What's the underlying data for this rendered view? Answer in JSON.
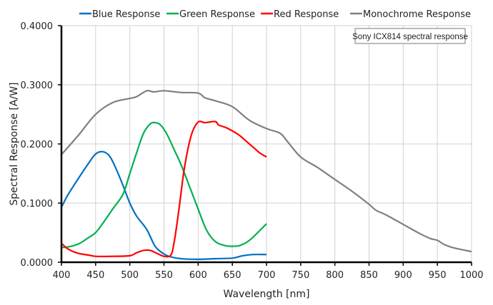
{
  "chart_data": {
    "type": "line",
    "title": "Sony ICX814 spectral response",
    "xlabel": "Wavelength [nm]",
    "ylabel": "Spectral Response [A/W]",
    "xlim": [
      400,
      1000
    ],
    "ylim": [
      0,
      0.4
    ],
    "xticks": [
      "400",
      "450",
      "500",
      "550",
      "600",
      "650",
      "700",
      "750",
      "800",
      "850",
      "900",
      "950",
      "1000"
    ],
    "yticks": [
      "0.0000",
      "0.1000",
      "0.2000",
      "0.3000",
      "0.4000"
    ],
    "grid": true,
    "legend_position": "top",
    "series": [
      {
        "name": "Blue Response",
        "color": "#0070c0",
        "x": [
          400,
          410,
          425,
          440,
          450,
          460,
          470,
          480,
          490,
          500,
          510,
          525,
          537,
          550,
          560,
          575,
          600,
          625,
          650,
          665,
          680,
          700
        ],
        "y": [
          0.093,
          0.115,
          0.142,
          0.168,
          0.183,
          0.187,
          0.18,
          0.158,
          0.13,
          0.1,
          0.078,
          0.055,
          0.027,
          0.014,
          0.009,
          0.006,
          0.005,
          0.006,
          0.007,
          0.011,
          0.013,
          0.013
        ]
      },
      {
        "name": "Green Response",
        "color": "#00b050",
        "x": [
          400,
          410,
          425,
          440,
          450,
          460,
          475,
          490,
          500,
          510,
          520,
          530,
          537,
          545,
          555,
          565,
          575,
          590,
          600,
          612,
          625,
          640,
          650,
          660,
          670,
          680,
          700
        ],
        "y": [
          0.025,
          0.026,
          0.031,
          0.042,
          0.05,
          0.065,
          0.09,
          0.115,
          0.15,
          0.185,
          0.218,
          0.234,
          0.236,
          0.232,
          0.215,
          0.19,
          0.165,
          0.12,
          0.09,
          0.055,
          0.035,
          0.028,
          0.027,
          0.028,
          0.033,
          0.042,
          0.065
        ]
      },
      {
        "name": "Red Response",
        "color": "#ff0000",
        "x": [
          400,
          410,
          425,
          440,
          450,
          475,
          500,
          510,
          520,
          530,
          540,
          550,
          560,
          565,
          572,
          580,
          590,
          600,
          610,
          625,
          630,
          640,
          650,
          660,
          670,
          680,
          690,
          700
        ],
        "y": [
          0.032,
          0.022,
          0.015,
          0.012,
          0.01,
          0.01,
          0.011,
          0.016,
          0.02,
          0.02,
          0.015,
          0.01,
          0.012,
          0.035,
          0.09,
          0.16,
          0.215,
          0.237,
          0.236,
          0.238,
          0.232,
          0.228,
          0.222,
          0.215,
          0.205,
          0.195,
          0.185,
          0.178
        ]
      },
      {
        "name": "Monochrome Response",
        "color": "#7f7f7f",
        "x": [
          400,
          425,
          450,
          475,
          500,
          510,
          525,
          535,
          550,
          575,
          600,
          610,
          625,
          650,
          675,
          700,
          720,
          730,
          750,
          775,
          800,
          825,
          850,
          860,
          875,
          900,
          925,
          940,
          950,
          960,
          975,
          1000
        ],
        "y": [
          0.182,
          0.215,
          0.25,
          0.27,
          0.277,
          0.28,
          0.29,
          0.288,
          0.29,
          0.287,
          0.286,
          0.278,
          0.273,
          0.263,
          0.24,
          0.226,
          0.218,
          0.205,
          0.178,
          0.16,
          0.14,
          0.12,
          0.098,
          0.088,
          0.08,
          0.064,
          0.048,
          0.04,
          0.037,
          0.03,
          0.024,
          0.018
        ]
      }
    ]
  }
}
